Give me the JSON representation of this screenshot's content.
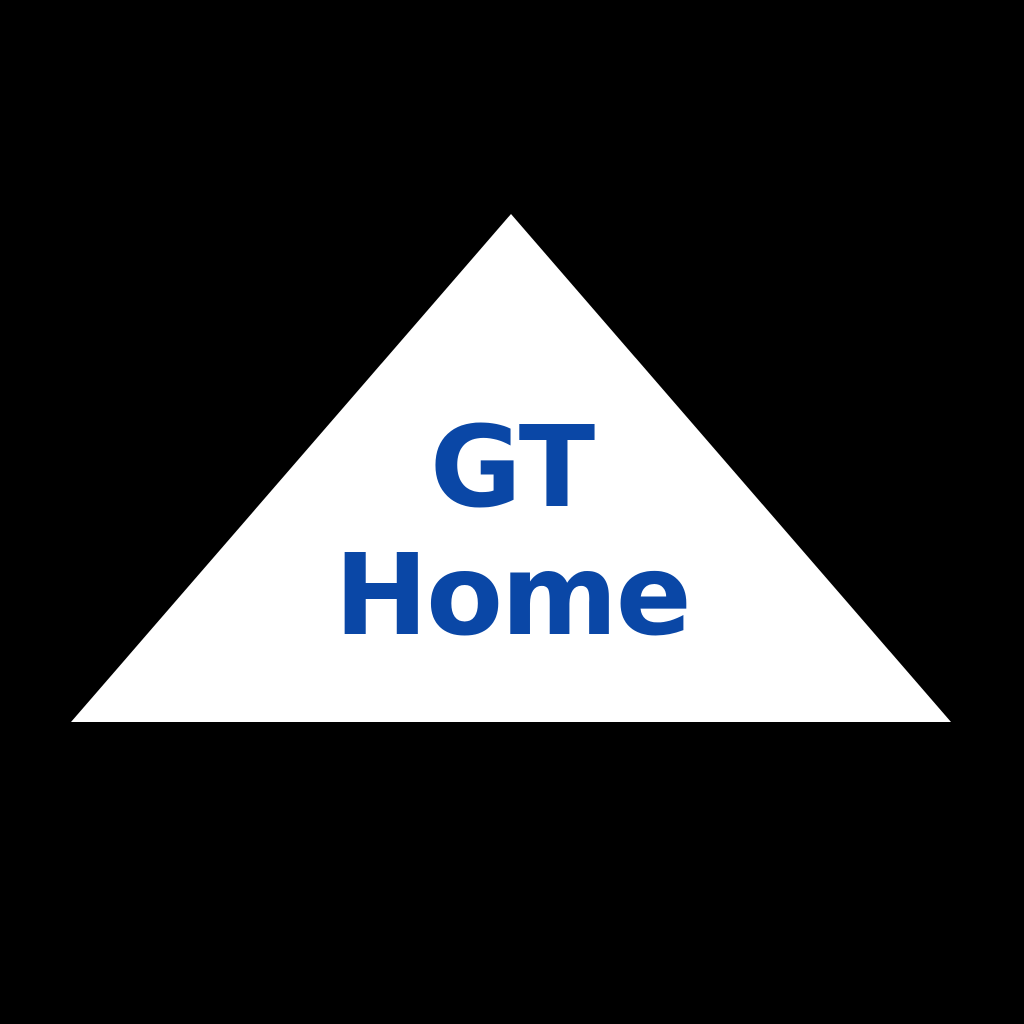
{
  "logo": {
    "line_1": "GT",
    "line_2": "Home",
    "text_color": "#0a47a6",
    "shape_color": "#ffffff",
    "background_color": "#000000",
    "icon": "house-roof-triangle-icon"
  }
}
